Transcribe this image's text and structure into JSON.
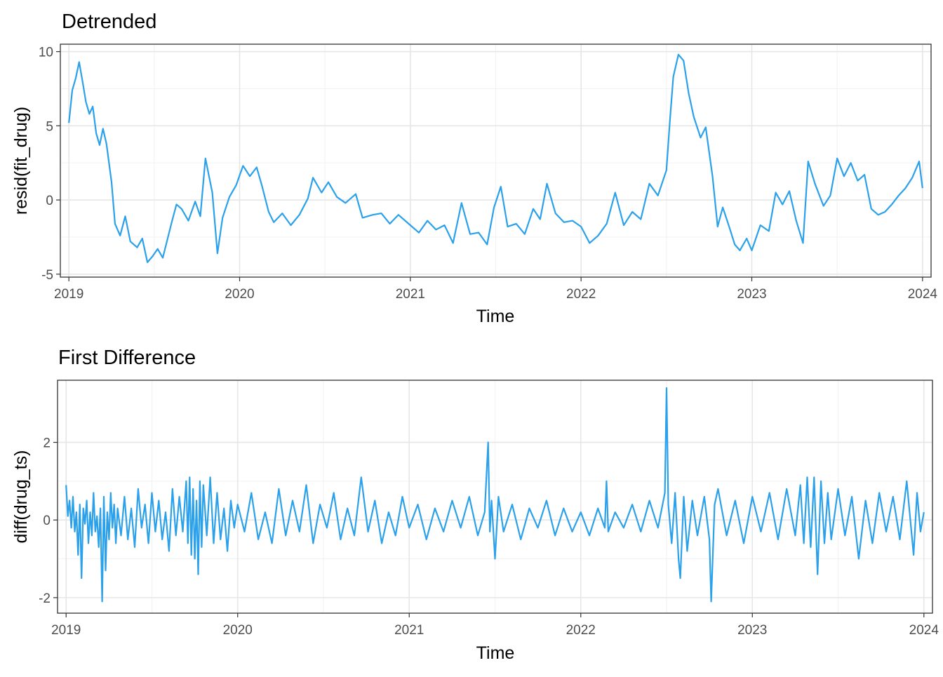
{
  "chart_data": [
    {
      "type": "line",
      "title": "Detrended",
      "xlabel": "Time",
      "ylabel": "resid(fit_drug)",
      "xlim": [
        2018.95,
        2024.05
      ],
      "ylim": [
        -5.2,
        10.5
      ],
      "x_ticks": [
        2019,
        2020,
        2021,
        2022,
        2023,
        2024
      ],
      "y_ticks": [
        -5,
        0,
        5,
        10
      ],
      "grid": true,
      "line_color": "#2AA1EA",
      "series": [
        {
          "x": [
            2019.0,
            2019.02,
            2019.04,
            2019.06,
            2019.08,
            2019.1,
            2019.12,
            2019.14,
            2019.16,
            2019.18,
            2019.2,
            2019.22,
            2019.25,
            2019.27,
            2019.3,
            2019.33,
            2019.36,
            2019.4,
            2019.43,
            2019.46,
            2019.49,
            2019.52,
            2019.55,
            2019.6,
            2019.63,
            2019.66,
            2019.7,
            2019.74,
            2019.77,
            2019.8,
            2019.84,
            2019.87,
            2019.9,
            2019.94,
            2019.98,
            2020.02,
            2020.06,
            2020.1,
            2020.13,
            2020.17,
            2020.2,
            2020.25,
            2020.3,
            2020.35,
            2020.4,
            2020.43,
            2020.48,
            2020.52,
            2020.57,
            2020.62,
            2020.68,
            2020.72,
            2020.78,
            2020.83,
            2020.88,
            2020.93,
            2021.0,
            2021.05,
            2021.1,
            2021.15,
            2021.2,
            2021.25,
            2021.3,
            2021.35,
            2021.4,
            2021.45,
            2021.49,
            2021.53,
            2021.57,
            2021.62,
            2021.67,
            2021.72,
            2021.76,
            2021.8,
            2021.85,
            2021.9,
            2021.95,
            2022.0,
            2022.05,
            2022.1,
            2022.15,
            2022.2,
            2022.25,
            2022.3,
            2022.35,
            2022.4,
            2022.45,
            2022.5,
            2022.52,
            2022.54,
            2022.57,
            2022.6,
            2022.63,
            2022.66,
            2022.7,
            2022.73,
            2022.77,
            2022.8,
            2022.83,
            2022.87,
            2022.9,
            2022.93,
            2022.97,
            2023.0,
            2023.05,
            2023.1,
            2023.14,
            2023.18,
            2023.22,
            2023.26,
            2023.3,
            2023.33,
            2023.37,
            2023.42,
            2023.46,
            2023.5,
            2023.54,
            2023.58,
            2023.62,
            2023.66,
            2023.7,
            2023.74,
            2023.78,
            2023.82,
            2023.86,
            2023.9,
            2023.94,
            2023.98,
            2024.0
          ],
          "y": [
            5.2,
            7.4,
            8.2,
            9.3,
            8.0,
            6.6,
            5.8,
            6.3,
            4.5,
            3.7,
            4.8,
            3.8,
            1.2,
            -1.6,
            -2.4,
            -1.1,
            -2.8,
            -3.2,
            -2.6,
            -4.2,
            -3.8,
            -3.3,
            -3.9,
            -1.6,
            -0.3,
            -0.6,
            -1.4,
            -0.1,
            -1.1,
            2.8,
            0.5,
            -3.6,
            -1.2,
            0.2,
            1.0,
            2.3,
            1.6,
            2.2,
            1.0,
            -0.8,
            -1.5,
            -0.9,
            -1.7,
            -1.0,
            0.1,
            1.5,
            0.5,
            1.2,
            0.2,
            -0.2,
            0.4,
            -1.2,
            -1.0,
            -0.9,
            -1.6,
            -1.0,
            -1.7,
            -2.2,
            -1.4,
            -2.0,
            -1.7,
            -2.9,
            -0.2,
            -2.3,
            -2.2,
            -3.0,
            -0.5,
            0.9,
            -1.8,
            -1.6,
            -2.3,
            -0.6,
            -1.3,
            1.1,
            -0.9,
            -1.5,
            -1.4,
            -1.8,
            -2.9,
            -2.4,
            -1.6,
            0.5,
            -1.7,
            -0.8,
            -1.3,
            1.1,
            0.3,
            2.0,
            5.3,
            8.3,
            9.8,
            9.4,
            7.2,
            5.6,
            4.2,
            4.9,
            1.6,
            -1.8,
            -0.5,
            -1.9,
            -3.0,
            -3.4,
            -2.6,
            -3.4,
            -1.7,
            -2.1,
            0.5,
            -0.3,
            0.6,
            -1.4,
            -2.9,
            2.6,
            1.1,
            -0.4,
            0.3,
            2.8,
            1.6,
            2.5,
            1.3,
            1.7,
            -0.6,
            -1.0,
            -0.8,
            -0.3,
            0.3,
            0.8,
            1.5,
            2.6,
            0.8
          ]
        }
      ]
    },
    {
      "type": "line",
      "title": "First Difference",
      "xlabel": "Time",
      "ylabel": "diff(drug_ts)",
      "xlim": [
        2018.95,
        2024.05
      ],
      "ylim": [
        -2.4,
        3.6
      ],
      "x_ticks": [
        2019,
        2020,
        2021,
        2022,
        2023,
        2024
      ],
      "y_ticks": [
        -2,
        0,
        2
      ],
      "grid": true,
      "line_color": "#2AA1EA",
      "series": [
        {
          "x": [
            2019.0,
            2019.01,
            2019.02,
            2019.03,
            2019.04,
            2019.05,
            2019.06,
            2019.07,
            2019.08,
            2019.09,
            2019.1,
            2019.11,
            2019.12,
            2019.13,
            2019.14,
            2019.15,
            2019.16,
            2019.17,
            2019.18,
            2019.19,
            2019.2,
            2019.21,
            2019.22,
            2019.23,
            2019.24,
            2019.25,
            2019.26,
            2019.27,
            2019.28,
            2019.29,
            2019.3,
            2019.32,
            2019.34,
            2019.36,
            2019.38,
            2019.4,
            2019.42,
            2019.44,
            2019.46,
            2019.48,
            2019.5,
            2019.52,
            2019.54,
            2019.56,
            2019.58,
            2019.6,
            2019.62,
            2019.64,
            2019.66,
            2019.68,
            2019.7,
            2019.71,
            2019.72,
            2019.73,
            2019.74,
            2019.75,
            2019.76,
            2019.77,
            2019.78,
            2019.79,
            2019.8,
            2019.82,
            2019.84,
            2019.86,
            2019.88,
            2019.9,
            2019.92,
            2019.94,
            2019.96,
            2019.98,
            2020.0,
            2020.04,
            2020.08,
            2020.12,
            2020.16,
            2020.2,
            2020.24,
            2020.28,
            2020.32,
            2020.36,
            2020.4,
            2020.44,
            2020.48,
            2020.52,
            2020.56,
            2020.6,
            2020.64,
            2020.68,
            2020.72,
            2020.76,
            2020.8,
            2020.84,
            2020.88,
            2020.92,
            2020.96,
            2021.0,
            2021.05,
            2021.1,
            2021.15,
            2021.2,
            2021.25,
            2021.3,
            2021.35,
            2021.4,
            2021.44,
            2021.46,
            2021.47,
            2021.48,
            2021.5,
            2021.52,
            2021.55,
            2021.6,
            2021.65,
            2021.7,
            2021.75,
            2021.8,
            2021.85,
            2021.9,
            2021.95,
            2022.0,
            2022.05,
            2022.1,
            2022.14,
            2022.15,
            2022.16,
            2022.2,
            2022.25,
            2022.3,
            2022.35,
            2022.4,
            2022.45,
            2022.49,
            2022.5,
            2022.51,
            2022.53,
            2022.55,
            2022.57,
            2022.58,
            2022.6,
            2022.62,
            2022.65,
            2022.68,
            2022.72,
            2022.75,
            2022.76,
            2022.78,
            2022.8,
            2022.85,
            2022.9,
            2022.95,
            2023.0,
            2023.05,
            2023.1,
            2023.15,
            2023.2,
            2023.25,
            2023.28,
            2023.3,
            2023.32,
            2023.34,
            2023.36,
            2023.38,
            2023.4,
            2023.42,
            2023.44,
            2023.46,
            2023.5,
            2023.54,
            2023.58,
            2023.62,
            2023.66,
            2023.7,
            2023.74,
            2023.78,
            2023.82,
            2023.86,
            2023.9,
            2023.94,
            2023.96,
            2023.98,
            2024.0
          ],
          "y": [
            0.9,
            0.1,
            0.5,
            -0.2,
            0.6,
            -0.3,
            0.2,
            -0.9,
            0.4,
            -1.5,
            0.3,
            -0.1,
            0.5,
            -0.6,
            0.2,
            -0.4,
            0.7,
            -0.3,
            0.1,
            -0.7,
            0.3,
            -2.1,
            0.6,
            -1.3,
            0.2,
            -0.5,
            0.7,
            -0.2,
            0.4,
            -0.6,
            0.3,
            -0.4,
            0.6,
            -0.5,
            0.3,
            -0.7,
            0.8,
            -0.2,
            0.4,
            -0.6,
            0.7,
            -0.3,
            0.5,
            -0.5,
            0.2,
            -0.8,
            0.8,
            -0.4,
            0.6,
            -0.3,
            1.0,
            -0.6,
            1.1,
            -0.9,
            0.8,
            -1.0,
            0.5,
            -1.4,
            1.0,
            -0.7,
            0.9,
            -0.4,
            1.1,
            -0.6,
            0.7,
            -0.5,
            0.3,
            -0.8,
            0.5,
            -0.2,
            0.4,
            -0.3,
            0.7,
            -0.5,
            0.2,
            -0.6,
            0.8,
            -0.4,
            0.5,
            -0.3,
            0.9,
            -0.6,
            0.4,
            -0.2,
            0.7,
            -0.5,
            0.3,
            -0.4,
            1.1,
            -0.3,
            0.5,
            -0.6,
            0.2,
            -0.4,
            0.6,
            -0.2,
            0.4,
            -0.5,
            0.3,
            -0.3,
            0.5,
            -0.2,
            0.6,
            -0.4,
            0.2,
            2.0,
            -0.3,
            0.5,
            -1.0,
            0.6,
            -0.3,
            0.4,
            -0.5,
            0.3,
            -0.2,
            0.5,
            -0.4,
            0.3,
            -0.3,
            0.2,
            -0.4,
            0.3,
            -0.2,
            1.0,
            -0.3,
            0.2,
            -0.2,
            0.4,
            -0.3,
            0.5,
            -0.2,
            0.7,
            3.4,
            0.4,
            -0.6,
            0.7,
            -1.0,
            -1.5,
            0.6,
            -0.8,
            0.5,
            -0.4,
            0.6,
            -0.5,
            -2.1,
            0.4,
            0.8,
            -0.4,
            0.5,
            -0.6,
            0.6,
            -0.3,
            0.7,
            -0.5,
            0.8,
            -0.4,
            0.9,
            -0.6,
            1.1,
            -0.7,
            1.1,
            -1.4,
            1.0,
            -0.6,
            0.7,
            -0.5,
            0.8,
            -0.4,
            0.6,
            -1.0,
            0.5,
            -0.6,
            0.7,
            -0.3,
            0.6,
            -0.5,
            1.0,
            -0.9,
            0.7,
            -0.3,
            0.2
          ]
        }
      ]
    }
  ]
}
